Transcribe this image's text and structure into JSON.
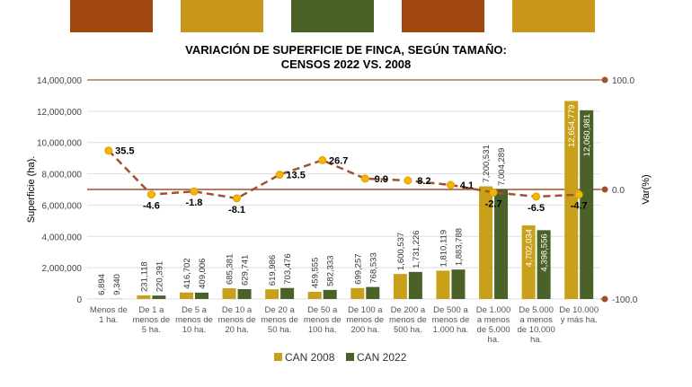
{
  "header_blocks": [
    "#A0480F",
    "#C8961A",
    "#4A6127",
    "#A0480F",
    "#C8961A"
  ],
  "chart_data": {
    "type": "bar+line",
    "title": "VARIACIÓN DE SUPERFICIE DE FINCA, SEGÚN TAMAÑO:",
    "subtitle": "CENSOS 2022 VS. 2008",
    "ylabel": "Superficie (ha).",
    "y2label": "Var(%)",
    "ylim": [
      0,
      14000000
    ],
    "y2lim": [
      -100,
      100
    ],
    "yticks": [
      "0",
      "2,000,000",
      "4,000,000",
      "6,000,000",
      "8,000,000",
      "10,000,000",
      "12,000,000",
      "14,000,000"
    ],
    "y2ticks": [
      "-100.0",
      "0.0",
      "100.0"
    ],
    "categories": [
      [
        "Menos de",
        "1 ha."
      ],
      [
        "De  1 a",
        "menos de",
        "5 ha."
      ],
      [
        "De 5 a",
        "menos de",
        "10 ha."
      ],
      [
        "De 10 a",
        "menos de",
        "20 ha."
      ],
      [
        "De 20 a",
        "menos de",
        "50 ha."
      ],
      [
        "De 50 a",
        "menos de",
        "100 ha."
      ],
      [
        "De   100 a",
        "menos de",
        "200 ha."
      ],
      [
        "De 200 a",
        "menos de",
        "500 ha."
      ],
      [
        "De  500 a",
        "menos de",
        "1.000 ha."
      ],
      [
        "De    1.000",
        "a menos",
        "de   5.000",
        "ha."
      ],
      [
        "De    5.000",
        "a menos",
        "de 10.000",
        "ha."
      ],
      [
        "De 10.000",
        "y más ha."
      ]
    ],
    "series": [
      {
        "name": "CAN 2008",
        "color": "#C9A01A",
        "values": [
          6894,
          231118,
          416702,
          685381,
          619986,
          459555,
          699257,
          1600537,
          1810119,
          7200531,
          4702034,
          12654779
        ],
        "labels": [
          "6,894",
          "231,118",
          "416,702",
          "685,381",
          "619,986",
          "459,555",
          "699,257",
          "1,600,537",
          "1,810,119",
          "7,200,531",
          "4,702,034",
          "12,654,779"
        ]
      },
      {
        "name": "CAN 2022",
        "color": "#4A6127",
        "values": [
          9340,
          220391,
          409006,
          629741,
          703476,
          582333,
          768533,
          1731226,
          1883788,
          7004289,
          4398556,
          12060981
        ],
        "labels": [
          "9,340",
          "220,391",
          "409,006",
          "629,741",
          "703,476",
          "582,333",
          "768,533",
          "1,731,226",
          "1,883,788",
          "7,004,289",
          "4,398,556",
          "12,060,981"
        ]
      }
    ],
    "variation": {
      "color": "#A0522D",
      "values": [
        35.5,
        -4.6,
        -1.8,
        -8.1,
        13.5,
        26.7,
        9.9,
        8.2,
        4.1,
        -2.7,
        -6.5,
        -4.7
      ],
      "labels": [
        "35.5",
        "-4.6",
        "-1.8",
        "-8.1",
        "13.5",
        "26.7",
        "9.9",
        "8.2",
        "4.1",
        "-2.7",
        "-6.5",
        "-4.7"
      ]
    },
    "legend_position": "bottom",
    "grid": true
  }
}
